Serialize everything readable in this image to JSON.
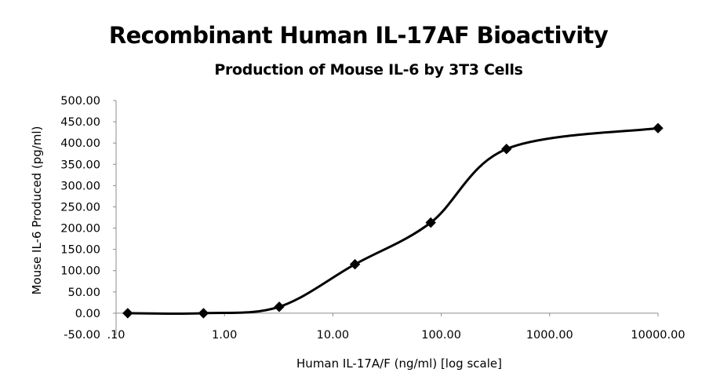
{
  "chart_data": {
    "type": "scatter",
    "title": "Recombinant Human IL-17AF Bioactivity",
    "subtitle": "Production of Mouse IL-6 by 3T3 Cells",
    "xlabel": "Human IL-17A/F (ng/ml) [log scale]",
    "ylabel": "Mouse IL-6 Produced (pg/ml)",
    "x_scale": "log",
    "xlim": [
      0.1,
      10000
    ],
    "ylim": [
      -50,
      500
    ],
    "x_ticks": [
      0.1,
      1,
      10,
      100,
      1000,
      10000
    ],
    "x_tick_labels": [
      ".10",
      "1.00",
      "10.00",
      "100.00",
      "1000.00",
      "10000.00"
    ],
    "y_ticks": [
      -50,
      0,
      50,
      100,
      150,
      200,
      250,
      300,
      350,
      400,
      450,
      500
    ],
    "y_tick_labels": [
      "-50.00",
      "0.00",
      "50.00",
      "100.00",
      "150.00",
      "200.00",
      "250.00",
      "300.00",
      "350.00",
      "400.00",
      "450.00",
      "500.00"
    ],
    "grid": false,
    "legend": "none",
    "series": [
      {
        "x": [
          0.128,
          0.64,
          3.2,
          16,
          80,
          400,
          10000
        ],
        "y": [
          0,
          0,
          15,
          115,
          213,
          386,
          435
        ],
        "line": "smooth",
        "marker": "diamond",
        "color": "#000000"
      }
    ]
  }
}
